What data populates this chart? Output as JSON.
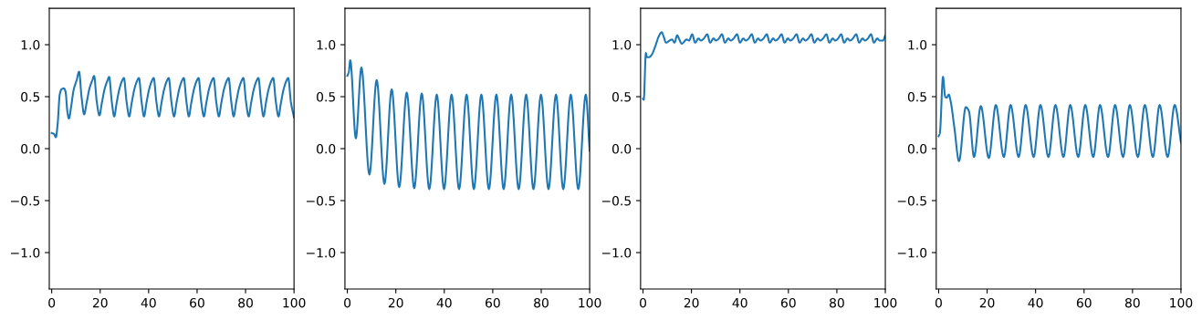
{
  "chart_data": [
    {
      "type": "line",
      "xlim": [
        -1,
        100
      ],
      "ylim": [
        -1.35,
        1.35
      ],
      "xticks": [
        0,
        20,
        40,
        60,
        80,
        100
      ],
      "yticks": [
        {
          "value": -1,
          "label": "−1.0"
        },
        {
          "value": -0.5,
          "label": "−0.5"
        },
        {
          "value": 0,
          "label": "0.0"
        },
        {
          "value": 0.5,
          "label": "0.5"
        },
        {
          "value": 1,
          "label": "1.0"
        }
      ],
      "series": [
        {
          "color": "#1f77b4",
          "x": [
            0,
            1,
            1.7,
            2.5,
            3.3,
            4,
            5,
            5.7,
            6.5,
            7.1,
            8,
            9,
            10.3,
            11.3,
            12.3,
            13.4,
            14.4,
            15.6,
            16.8,
            17.5,
            18.6,
            19.7,
            20.7,
            21.9,
            23.1,
            23.7,
            24.8,
            25.8,
            26.8,
            28.0,
            29.2,
            29.8,
            30.9,
            32.0,
            33.0,
            34.2,
            35.4,
            36.0,
            37.1,
            38.1,
            39.1,
            40.3,
            41.5,
            42.1,
            43.2,
            44.3,
            45.3,
            46.5,
            47.7,
            48.3,
            49.4,
            50.5,
            51.5,
            52.7,
            53.9,
            54.5,
            55.6,
            56.6,
            57.6,
            58.8,
            60.0,
            60.6,
            61.7,
            62.8,
            63.8,
            65.0,
            66.2,
            66.8,
            67.9,
            69.0,
            70.0,
            71.2,
            72.4,
            73.0,
            74.1,
            75.1,
            76.1,
            77.3,
            78.5,
            79.1,
            80.2,
            81.3,
            82.3,
            83.5,
            84.7,
            85.3,
            86.4,
            87.4,
            88.4,
            89.6,
            90.8,
            91.4,
            92.5,
            93.6,
            94.6,
            95.8,
            97.0,
            97.6,
            98.7,
            100
          ],
          "values": [
            0.15,
            0.14,
            0.11,
            0.25,
            0.52,
            0.57,
            0.58,
            0.55,
            0.35,
            0.29,
            0.4,
            0.56,
            0.66,
            0.74,
            0.5,
            0.33,
            0.44,
            0.58,
            0.66,
            0.7,
            0.45,
            0.32,
            0.44,
            0.58,
            0.66,
            0.69,
            0.45,
            0.31,
            0.44,
            0.58,
            0.66,
            0.68,
            0.45,
            0.31,
            0.44,
            0.58,
            0.66,
            0.68,
            0.45,
            0.31,
            0.44,
            0.58,
            0.66,
            0.68,
            0.45,
            0.31,
            0.44,
            0.58,
            0.66,
            0.68,
            0.45,
            0.31,
            0.44,
            0.58,
            0.66,
            0.68,
            0.45,
            0.31,
            0.44,
            0.58,
            0.66,
            0.68,
            0.45,
            0.31,
            0.44,
            0.58,
            0.66,
            0.68,
            0.45,
            0.31,
            0.44,
            0.58,
            0.66,
            0.68,
            0.45,
            0.31,
            0.44,
            0.58,
            0.66,
            0.68,
            0.45,
            0.31,
            0.44,
            0.58,
            0.66,
            0.68,
            0.45,
            0.31,
            0.44,
            0.58,
            0.66,
            0.68,
            0.45,
            0.31,
            0.44,
            0.58,
            0.66,
            0.68,
            0.45,
            0.3
          ]
        }
      ]
    },
    {
      "type": "line",
      "xlim": [
        -1,
        100
      ],
      "ylim": [
        -1.35,
        1.35
      ],
      "xticks": [
        0,
        20,
        40,
        60,
        80,
        100
      ],
      "yticks": [
        {
          "value": -1,
          "label": "−1.0"
        },
        {
          "value": -0.5,
          "label": "−0.5"
        },
        {
          "value": 0,
          "label": "0.0"
        },
        {
          "value": 0.5,
          "label": "0.5"
        },
        {
          "value": 1,
          "label": "1.0"
        }
      ],
      "series": [
        {
          "color": "#1f77b4",
          "x": [
            0,
            0.6,
            1.2,
            3.5,
            5.8,
            9.1,
            12.1,
            15.3,
            18.3,
            21.4,
            24.5,
            27.6,
            30.7,
            33.8,
            36.9,
            39.9,
            43.0,
            46.1,
            49.2,
            52.2,
            55.3,
            58.4,
            61.5,
            64.5,
            67.6,
            70.7,
            73.8,
            76.8,
            79.9,
            83.0,
            86.1,
            89.1,
            92.2,
            95.3,
            98.4,
            100
          ],
          "values": [
            0.7,
            0.74,
            0.85,
            0.1,
            0.78,
            -0.25,
            0.66,
            -0.34,
            0.57,
            -0.37,
            0.54,
            -0.38,
            0.53,
            -0.39,
            0.52,
            -0.39,
            0.52,
            -0.39,
            0.52,
            -0.39,
            0.52,
            -0.39,
            0.52,
            -0.39,
            0.52,
            -0.39,
            0.52,
            -0.39,
            0.52,
            -0.39,
            0.52,
            -0.39,
            0.52,
            -0.39,
            0.52,
            -0.02
          ]
        }
      ]
    },
    {
      "type": "line",
      "xlim": [
        -1,
        100
      ],
      "ylim": [
        -1.35,
        1.35
      ],
      "xticks": [
        0,
        20,
        40,
        60,
        80,
        100
      ],
      "yticks": [
        {
          "value": -1,
          "label": "−1.0"
        },
        {
          "value": -0.5,
          "label": "−0.5"
        },
        {
          "value": 0,
          "label": "0.0"
        },
        {
          "value": 0.5,
          "label": "0.5"
        },
        {
          "value": 1,
          "label": "1.0"
        }
      ],
      "series": [
        {
          "color": "#1f77b4",
          "x": [
            0,
            0.3,
            1.2,
            1.6,
            2.5,
            3.5,
            5,
            6.5,
            7.7,
            8.5,
            9.5,
            11,
            12,
            13,
            14.1,
            15,
            16,
            18,
            19,
            20.3,
            21.5,
            22.9,
            23.9,
            25.1,
            26.5,
            27.7,
            29.1,
            30.1,
            31.3,
            32.6,
            33.8,
            35.2,
            36.2,
            37.4,
            38.8,
            40.0,
            41.4,
            42.4,
            43.6,
            44.9,
            46.1,
            47.5,
            48.5,
            49.7,
            51.1,
            52.3,
            53.7,
            54.7,
            55.9,
            57.2,
            58.4,
            59.8,
            60.8,
            62.0,
            63.4,
            64.6,
            66.0,
            67.0,
            68.2,
            69.5,
            70.7,
            72.1,
            73.1,
            74.3,
            75.7,
            76.9,
            78.3,
            79.3,
            80.5,
            81.8,
            83.0,
            84.4,
            85.4,
            86.6,
            88.0,
            89.2,
            90.6,
            91.6,
            92.8,
            94.1,
            95.3,
            96.7,
            97.7,
            99,
            100
          ],
          "values": [
            0.48,
            0.47,
            0.92,
            0.88,
            0.88,
            0.9,
            0.98,
            1.08,
            1.12,
            1.08,
            1.02,
            1.04,
            1.05,
            1.02,
            1.09,
            1.05,
            1.01,
            1.05,
            1.04,
            1.1,
            1.02,
            1.06,
            1.04,
            1.06,
            1.1,
            1.02,
            1.06,
            1.04,
            1.06,
            1.1,
            1.02,
            1.06,
            1.04,
            1.06,
            1.1,
            1.02,
            1.06,
            1.04,
            1.06,
            1.1,
            1.02,
            1.06,
            1.04,
            1.06,
            1.1,
            1.02,
            1.06,
            1.04,
            1.06,
            1.1,
            1.02,
            1.06,
            1.04,
            1.06,
            1.1,
            1.02,
            1.06,
            1.04,
            1.06,
            1.1,
            1.02,
            1.06,
            1.04,
            1.06,
            1.1,
            1.02,
            1.06,
            1.04,
            1.06,
            1.1,
            1.02,
            1.06,
            1.04,
            1.06,
            1.1,
            1.02,
            1.06,
            1.04,
            1.06,
            1.1,
            1.02,
            1.06,
            1.04,
            1.04,
            1.09
          ]
        }
      ]
    },
    {
      "type": "line",
      "xlim": [
        -1,
        100
      ],
      "ylim": [
        -1.35,
        1.35
      ],
      "xticks": [
        0,
        20,
        40,
        60,
        80,
        100
      ],
      "yticks": [
        {
          "value": -1,
          "label": "−1.0"
        },
        {
          "value": -0.5,
          "label": "−0.5"
        },
        {
          "value": 0,
          "label": "0.0"
        },
        {
          "value": 0.5,
          "label": "0.5"
        },
        {
          "value": 1,
          "label": "1.0"
        }
      ],
      "series": [
        {
          "color": "#1f77b4",
          "x": [
            0,
            0.5,
            1.8,
            2.7,
            3.3,
            4.2,
            5.0,
            6.5,
            8.4,
            11.2,
            12.5,
            14.6,
            17.4,
            20.7,
            23.6,
            26.9,
            29.7,
            33.0,
            35.9,
            39.2,
            42.0,
            45.3,
            48.2,
            51.5,
            54.3,
            57.6,
            60.5,
            63.8,
            66.6,
            69.9,
            72.8,
            76.1,
            78.9,
            82.2,
            85.1,
            88.4,
            91.2,
            94.5,
            97.4,
            100
          ],
          "values": [
            0.12,
            0.15,
            0.69,
            0.5,
            0.49,
            0.52,
            0.45,
            0.2,
            -0.12,
            0.4,
            0.36,
            -0.08,
            0.41,
            -0.09,
            0.42,
            -0.08,
            0.42,
            -0.08,
            0.42,
            -0.08,
            0.42,
            -0.08,
            0.42,
            -0.08,
            0.42,
            -0.08,
            0.42,
            -0.08,
            0.42,
            -0.08,
            0.42,
            -0.08,
            0.42,
            -0.08,
            0.42,
            -0.08,
            0.42,
            -0.08,
            0.42,
            0.06
          ]
        }
      ]
    }
  ]
}
